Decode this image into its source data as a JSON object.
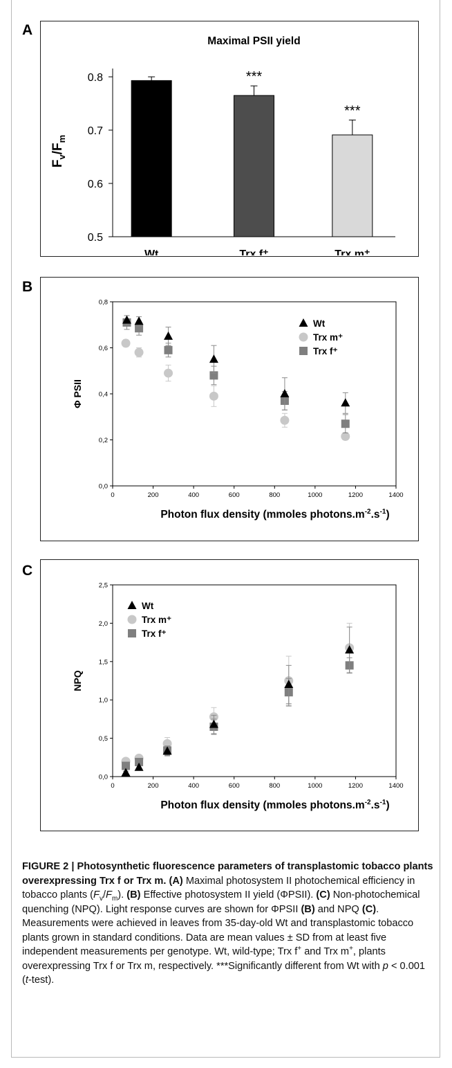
{
  "panels": {
    "A": {
      "label": "A"
    },
    "B": {
      "label": "B"
    },
    "C": {
      "label": "C"
    }
  },
  "chart_data": [
    {
      "panel": "A",
      "type": "bar",
      "title": "Maximal PSII yield",
      "ylabel": "Fv/Fm",
      "xlabel": "",
      "categories": [
        "Wt",
        "Trx f⁺",
        "Trx m⁺"
      ],
      "values": [
        0.793,
        0.765,
        0.691
      ],
      "errors": [
        0.007,
        0.018,
        0.028
      ],
      "annotations": [
        "",
        "***",
        "***"
      ],
      "colors": [
        "#000000",
        "#4d4d4d",
        "#d9d9d9"
      ],
      "ylim": [
        0.5,
        0.8
      ],
      "yticks": [
        "0.5",
        "0.6",
        "0.7",
        "0.8"
      ],
      "grid": false
    },
    {
      "panel": "B",
      "type": "scatter",
      "title": "",
      "ylabel": "Φ PSII",
      "xlabel": "Photon flux density  (mmoles photons.m-2.s-1)",
      "xlim": [
        0,
        1400
      ],
      "ylim": [
        0,
        0.8
      ],
      "xticks": [
        "0",
        "200",
        "400",
        "600",
        "800",
        "1000",
        "1200",
        "1400"
      ],
      "yticks": [
        "0,0",
        "0,2",
        "0,4",
        "0,6",
        "0,8"
      ],
      "legend_position": "top-right",
      "series": [
        {
          "name": "Wt",
          "marker": "triangle",
          "color": "#000000",
          "x": [
            70,
            130,
            275,
            500,
            850,
            1150
          ],
          "y": [
            0.72,
            0.715,
            0.65,
            0.55,
            0.4,
            0.36
          ],
          "err": [
            0.02,
            0.02,
            0.04,
            0.06,
            0.07,
            0.045
          ]
        },
        {
          "name": "Trx m⁺",
          "marker": "circle",
          "color": "#c8c8c8",
          "x": [
            65,
            130,
            275,
            500,
            850,
            1150
          ],
          "y": [
            0.62,
            0.58,
            0.49,
            0.39,
            0.285,
            0.215
          ],
          "err": [
            0.015,
            0.02,
            0.035,
            0.045,
            0.03,
            0.015
          ]
        },
        {
          "name": "Trx f⁺",
          "marker": "square",
          "color": "#7f7f7f",
          "x": [
            70,
            130,
            275,
            500,
            850,
            1150
          ],
          "y": [
            0.71,
            0.685,
            0.59,
            0.48,
            0.37,
            0.27
          ],
          "err": [
            0.03,
            0.03,
            0.03,
            0.04,
            0.04,
            0.04
          ]
        }
      ]
    },
    {
      "panel": "C",
      "type": "scatter",
      "title": "",
      "ylabel": "NPQ",
      "xlabel": "Photon flux density  (mmoles photons.m-2.s-1)",
      "xlim": [
        0,
        1400
      ],
      "ylim": [
        0,
        2.5
      ],
      "xticks": [
        "0",
        "200",
        "400",
        "600",
        "800",
        "1000",
        "1200",
        "1400"
      ],
      "yticks": [
        "0,0",
        "0,5",
        "1,0",
        "1,5",
        "2,0",
        "2,5"
      ],
      "legend_position": "top-left",
      "series": [
        {
          "name": "Wt",
          "marker": "triangle",
          "color": "#000000",
          "x": [
            65,
            130,
            270,
            500,
            870,
            1170
          ],
          "y": [
            0.05,
            0.12,
            0.33,
            0.68,
            1.2,
            1.65
          ],
          "err": [
            0.02,
            0.03,
            0.06,
            0.12,
            0.25,
            0.3
          ]
        },
        {
          "name": "Trx m⁺",
          "marker": "circle",
          "color": "#c8c8c8",
          "x": [
            65,
            130,
            270,
            500,
            870,
            1170
          ],
          "y": [
            0.2,
            0.24,
            0.43,
            0.78,
            1.25,
            1.68
          ],
          "err": [
            0.03,
            0.04,
            0.08,
            0.12,
            0.32,
            0.32
          ]
        },
        {
          "name": "Trx f⁺",
          "marker": "square",
          "color": "#7f7f7f",
          "x": [
            65,
            130,
            270,
            500,
            870,
            1170
          ],
          "y": [
            0.14,
            0.19,
            0.34,
            0.65,
            1.1,
            1.45
          ],
          "err": [
            0.02,
            0.04,
            0.06,
            0.1,
            0.18,
            0.1
          ]
        }
      ]
    }
  ],
  "caption": {
    "figure_label": "FIGURE 2 | ",
    "title": "Photosynthetic fluorescence parameters of transplastomic tobacco plants overexpressing Trx f or Trx m.",
    "tag_a": "(A)",
    "text_a": " Maximal photosystem II photochemical efficiency in tobacco plants (",
    "fv": "F",
    "fv_sub": "v",
    "slash": "/",
    "fm": "F",
    "fm_sub": "m",
    "text_a_end": "). ",
    "tag_b": "(B)",
    "text_b": " Effective photosystem II yield (ΦPSII). ",
    "tag_c": "(C)",
    "text_c": " Non-photochemical quenching (NPQ). Light response curves are shown for ΦPSII ",
    "tag_b2": "(B)",
    "text_and": " and NPQ ",
    "tag_c2": "(C)",
    "text_rest1": ". Measurements were achieved in leaves from 35-day-old Wt and transplastomic tobacco plants grown in standard conditions. Data are mean values ± SD from at least five independent measurements per genotype. Wt, wild-type; Trx f",
    "sup1": "+",
    "text_rest2": " and Trx m",
    "sup2": "+",
    "text_rest3": ", plants overexpressing Trx f or Trx m, respectively. ***Significantly different from Wt with ",
    "p": "p",
    "text_rest4": " < 0.001 (",
    "t": "t",
    "text_rest5": "-test)."
  }
}
